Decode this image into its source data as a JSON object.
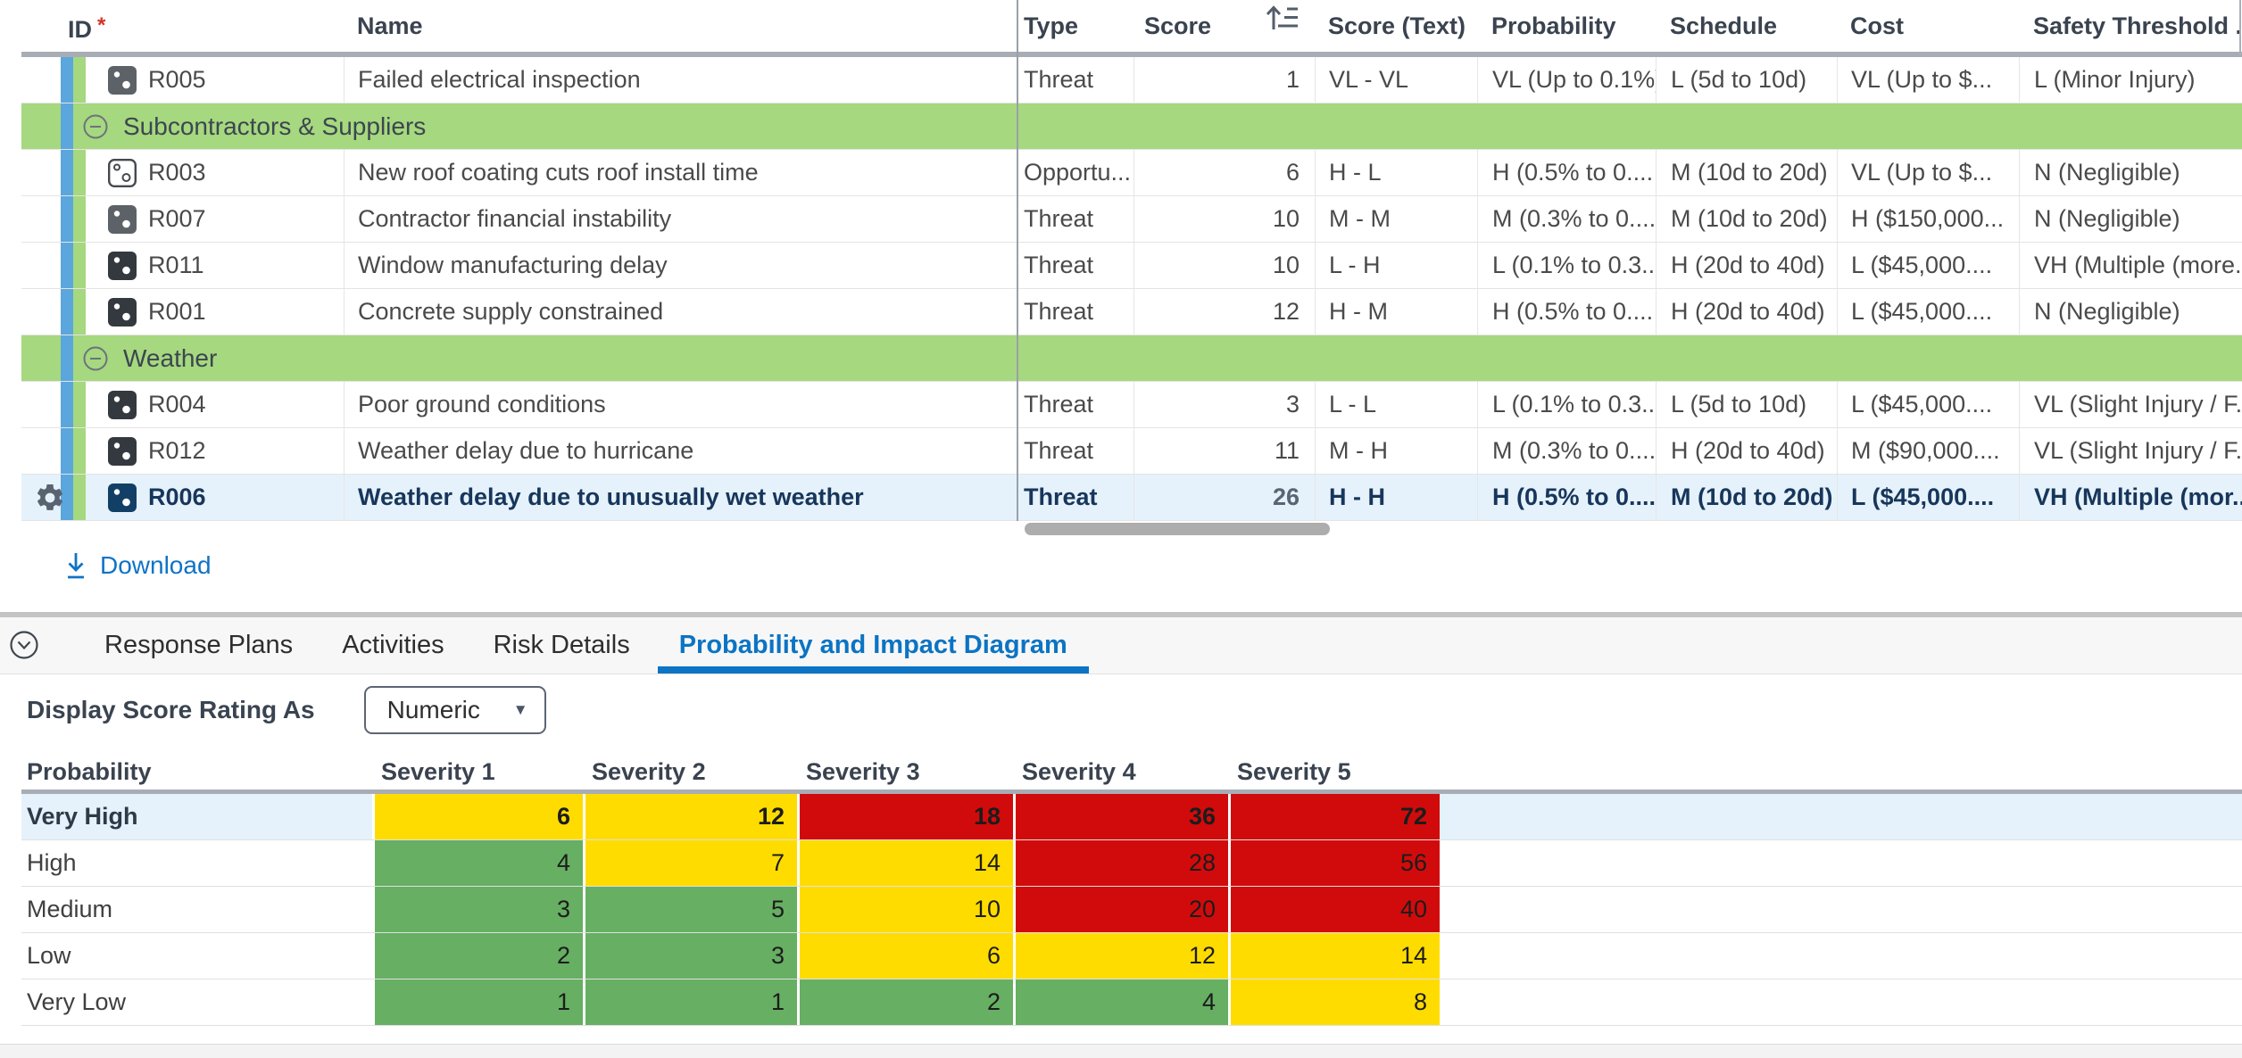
{
  "risk_table": {
    "required_marker": "*",
    "columns": [
      {
        "label": "ID",
        "required": true
      },
      {
        "label": "Name"
      },
      {
        "label": "Type"
      },
      {
        "label": "Score",
        "sorted": "ascending"
      },
      {
        "label": "Score (Text)"
      },
      {
        "label": "Probability"
      },
      {
        "label": "Schedule"
      },
      {
        "label": "Cost"
      },
      {
        "label": "Safety Threshold ..."
      }
    ],
    "rows": [
      {
        "id": "R005",
        "icon": "threat",
        "icon_tone": "muted",
        "name": "Failed electrical inspection",
        "type": "Threat",
        "score": "1",
        "score_text": "VL - VL",
        "probability": "VL (Up to 0.1%)",
        "schedule": "L (5d to 10d)",
        "cost": "VL (Up to $...",
        "safety": "L (Minor Injury)"
      },
      {
        "group": true,
        "label": "Subcontractors & Suppliers",
        "expanded": true
      },
      {
        "id": "R003",
        "icon": "opportunity",
        "icon_tone": "outline",
        "name": "New roof coating cuts roof install time",
        "type": "Opportu...",
        "score": "6",
        "score_text": "H - L",
        "probability": "H (0.5% to 0....",
        "schedule": "M (10d to 20d)",
        "cost": "VL (Up to $...",
        "safety": "N (Negligible)"
      },
      {
        "id": "R007",
        "icon": "threat",
        "icon_tone": "muted",
        "name": "Contractor financial instability",
        "type": "Threat",
        "score": "10",
        "score_text": "M - M",
        "probability": "M (0.3% to 0....",
        "schedule": "M (10d to 20d)",
        "cost": "H ($150,000...",
        "safety": "N (Negligible)"
      },
      {
        "id": "R011",
        "icon": "threat",
        "icon_tone": "dark",
        "name": "Window manufacturing delay",
        "type": "Threat",
        "score": "10",
        "score_text": "L - H",
        "probability": "L (0.1% to 0.3...",
        "schedule": "H (20d to 40d)",
        "cost": "L ($45,000....",
        "safety": "VH (Multiple (more..."
      },
      {
        "id": "R001",
        "icon": "threat",
        "icon_tone": "dark",
        "name": "Concrete supply constrained",
        "type": "Threat",
        "score": "12",
        "score_text": "H - M",
        "probability": "H (0.5% to 0....",
        "schedule": "H (20d to 40d)",
        "cost": "L ($45,000....",
        "safety": "N (Negligible)"
      },
      {
        "group": true,
        "label": "Weather",
        "expanded": true
      },
      {
        "id": "R004",
        "icon": "threat",
        "icon_tone": "dark",
        "name": "Poor ground conditions",
        "type": "Threat",
        "score": "3",
        "score_text": "L - L",
        "probability": "L (0.1% to 0.3...",
        "schedule": "L (5d to 10d)",
        "cost": "L ($45,000....",
        "safety": "VL (Slight Injury / F..."
      },
      {
        "id": "R012",
        "icon": "threat",
        "icon_tone": "dark",
        "name": "Weather delay due to hurricane",
        "type": "Threat",
        "score": "11",
        "score_text": "M - H",
        "probability": "M (0.3% to 0....",
        "schedule": "H (20d to 40d)",
        "cost": "M ($90,000....",
        "safety": "VL (Slight Injury / F..."
      },
      {
        "id": "R006",
        "icon": "threat",
        "icon_tone": "navy",
        "selected": true,
        "name": "Weather delay due to unusually wet weather",
        "type": "Threat",
        "score": "26",
        "score_text": "H - H",
        "probability": "H (0.5% to 0....",
        "schedule": "M (10d to 20d)",
        "cost": "L ($45,000....",
        "safety": "VH (Multiple (mor..."
      }
    ]
  },
  "download_label": "Download",
  "tabs": [
    {
      "label": "Response Plans",
      "active": false
    },
    {
      "label": "Activities",
      "active": false
    },
    {
      "label": "Risk Details",
      "active": false
    },
    {
      "label": "Probability and Impact Diagram",
      "active": true
    }
  ],
  "detail_panel": {
    "display_score_label": "Display Score Rating As",
    "display_score_value": "Numeric"
  },
  "chart_data": {
    "type": "heatmap",
    "title": "Probability and Impact Diagram",
    "corner_label": "Probability",
    "x_categories": [
      "Severity 1",
      "Severity 2",
      "Severity 3",
      "Severity 4",
      "Severity 5"
    ],
    "y_categories": [
      "Very High",
      "High",
      "Medium",
      "Low",
      "Very Low"
    ],
    "values": [
      [
        6,
        12,
        18,
        36,
        72
      ],
      [
        4,
        7,
        14,
        28,
        56
      ],
      [
        3,
        5,
        10,
        20,
        40
      ],
      [
        2,
        3,
        6,
        12,
        14
      ],
      [
        1,
        1,
        2,
        4,
        8
      ]
    ],
    "cell_colors": [
      [
        "yellow",
        "yellow",
        "red",
        "red",
        "red"
      ],
      [
        "green",
        "yellow",
        "yellow",
        "red",
        "red"
      ],
      [
        "green",
        "green",
        "yellow",
        "red",
        "red"
      ],
      [
        "green",
        "green",
        "yellow",
        "yellow",
        "yellow"
      ],
      [
        "green",
        "green",
        "green",
        "green",
        "yellow"
      ]
    ],
    "color_hex": {
      "green": "#66AF63",
      "yellow": "#FFDC00",
      "red": "#D10B0B"
    },
    "highlighted_row": "Very High",
    "legend_position": "none",
    "grid": false
  },
  "colors": {
    "accent_blue": "#0B74C4",
    "link_blue": "#0F73C6",
    "selected_row": "#E6F2FB",
    "group_green": "#A6D87F",
    "band_blue": "#5AA6DD",
    "header_divider": "#A8ADB5"
  }
}
